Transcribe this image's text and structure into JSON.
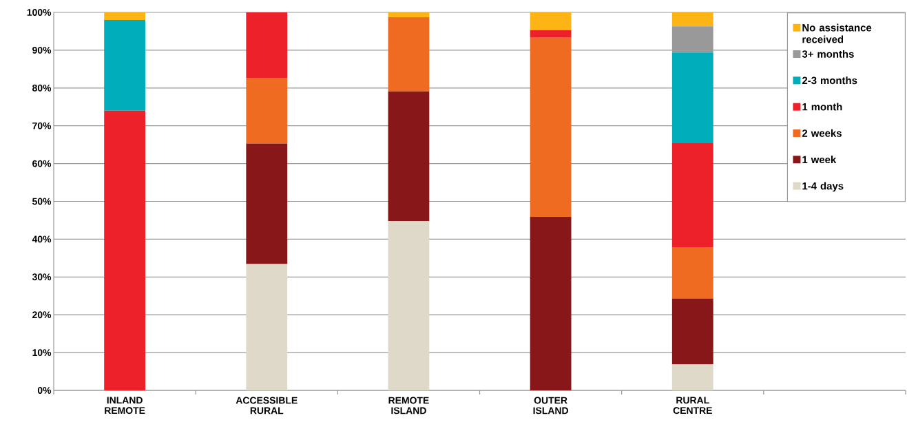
{
  "chart_data": {
    "type": "bar",
    "stacked": true,
    "categories": [
      "INLAND REMOTE",
      "ACCESSIBLE RURAL",
      "REMOTE ISLAND",
      "OUTER ISLAND",
      "RURAL CENTRE",
      null
    ],
    "series": [
      {
        "name": "1-4 days",
        "color": "#dfd9c9",
        "values": [
          0,
          33.4,
          44.8,
          0,
          6.9,
          null
        ]
      },
      {
        "name": "1 week",
        "color": "#88171a",
        "values": [
          0,
          31.9,
          34.3,
          45.9,
          17.4,
          null
        ]
      },
      {
        "name": "2 weeks",
        "color": "#f06b22",
        "values": [
          0,
          17.4,
          19.6,
          47.4,
          13.6,
          null
        ]
      },
      {
        "name": "1 month",
        "color": "#ed2129",
        "values": [
          74,
          17.3,
          0,
          2.0,
          27.5,
          null
        ]
      },
      {
        "name": "2-3 months",
        "color": "#00adba",
        "values": [
          24,
          0,
          0,
          0,
          24.0,
          null
        ]
      },
      {
        "name": "3+ months",
        "color": "#999999",
        "values": [
          0,
          0,
          0,
          0,
          6.9,
          null
        ]
      },
      {
        "name": "No assistance received",
        "color": "#fdb515",
        "values": [
          2,
          0,
          1.3,
          4.7,
          3.7,
          null
        ]
      }
    ],
    "ylim": [
      0,
      100
    ],
    "yticks": [
      {
        "value": 0,
        "label": "0%"
      },
      {
        "value": 10,
        "label": "10%"
      },
      {
        "value": 20,
        "label": "20%"
      },
      {
        "value": 30,
        "label": "30%"
      },
      {
        "value": 40,
        "label": "40%"
      },
      {
        "value": 50,
        "label": "50%"
      },
      {
        "value": 60,
        "label": "60%"
      },
      {
        "value": 70,
        "label": "70%"
      },
      {
        "value": 80,
        "label": "80%"
      },
      {
        "value": 90,
        "label": "90%"
      },
      {
        "value": 100,
        "label": "100%"
      }
    ],
    "grid": "y",
    "legend": "top right"
  }
}
